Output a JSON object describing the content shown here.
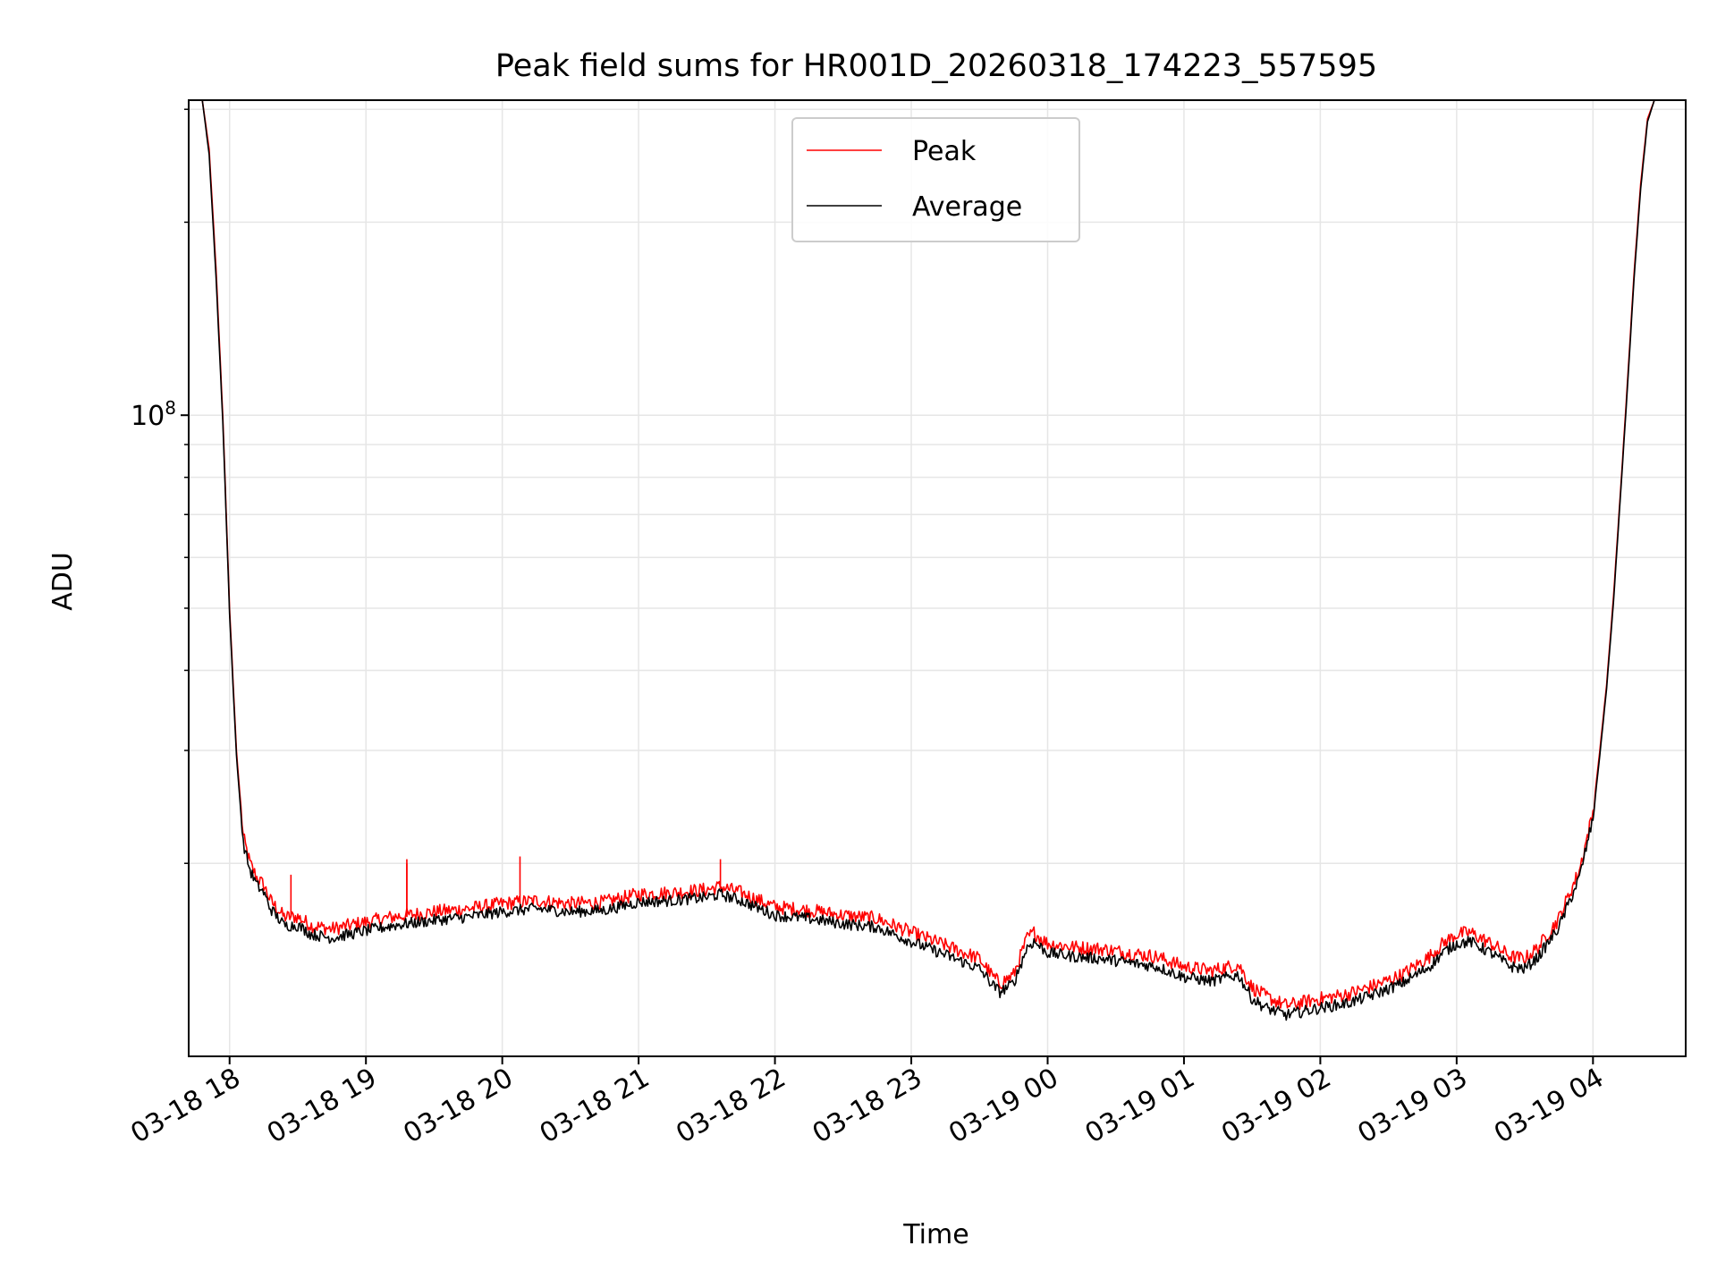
{
  "chart_data": {
    "type": "line",
    "title": "Peak field sums for HR001D_20260318_174223_557595",
    "xlabel": "Time",
    "ylabel": "ADU",
    "yscale": "log",
    "ylim": [
      10000000,
      310000000
    ],
    "xlim_hours": [
      17.7,
      28.68
    ],
    "grid": "major+minor",
    "legend_position": "upper center",
    "x_ticks": [
      {
        "hour": 18,
        "label": "03-18 18"
      },
      {
        "hour": 19,
        "label": "03-18 19"
      },
      {
        "hour": 20,
        "label": "03-18 20"
      },
      {
        "hour": 21,
        "label": "03-18 21"
      },
      {
        "hour": 22,
        "label": "03-18 22"
      },
      {
        "hour": 23,
        "label": "03-18 23"
      },
      {
        "hour": 24,
        "label": "03-19 00"
      },
      {
        "hour": 25,
        "label": "03-19 01"
      },
      {
        "hour": 26,
        "label": "03-19 02"
      },
      {
        "hour": 27,
        "label": "03-19 03"
      },
      {
        "hour": 28,
        "label": "03-19 04"
      }
    ],
    "y_major_ticks": [
      {
        "value": 100000000,
        "base": "10",
        "exp": "8"
      }
    ],
    "y_minor_values": [
      20000000,
      30000000,
      40000000,
      50000000,
      60000000,
      70000000,
      80000000,
      90000000,
      200000000,
      300000000
    ],
    "series": [
      {
        "name": "Peak",
        "color": "#ff0000",
        "x": [
          17.7,
          17.8,
          17.85,
          17.9,
          17.95,
          18.0,
          18.05,
          18.1,
          18.15,
          18.2,
          18.25,
          18.3,
          18.35,
          18.4,
          18.5,
          18.6,
          18.75,
          19.0,
          19.2,
          19.5,
          19.75,
          20.0,
          20.25,
          20.5,
          20.75,
          21.0,
          21.25,
          21.5,
          21.6,
          21.75,
          22.0,
          22.25,
          22.5,
          22.75,
          23.0,
          23.25,
          23.5,
          23.6,
          23.65,
          23.75,
          23.85,
          23.9,
          24.0,
          24.2,
          24.4,
          24.6,
          24.8,
          25.0,
          25.2,
          25.4,
          25.5,
          25.6,
          25.75,
          26.0,
          26.2,
          26.4,
          26.6,
          26.8,
          26.9,
          27.0,
          27.1,
          27.25,
          27.4,
          27.5,
          27.6,
          27.75,
          27.9,
          28.0,
          28.05,
          28.1,
          28.15,
          28.2,
          28.25,
          28.3,
          28.35,
          28.4,
          28.45,
          28.5,
          28.55,
          28.6,
          28.68
        ],
        "values": [
          310000000,
          310000000,
          260000000,
          170000000,
          100000000,
          50000000,
          30000000,
          22000000,
          20000000,
          19000000,
          18500000,
          17500000,
          17000000,
          16500000,
          16500000,
          16000000,
          15800000,
          16200000,
          16500000,
          16800000,
          17000000,
          17300000,
          17500000,
          17300000,
          17400000,
          17900000,
          18000000,
          18200000,
          18400000,
          18000000,
          17100000,
          16900000,
          16600000,
          16400000,
          15600000,
          14900000,
          14200000,
          13300000,
          13000000,
          13400000,
          15300000,
          15600000,
          15000000,
          14800000,
          14700000,
          14500000,
          14300000,
          13800000,
          13600000,
          13900000,
          12800000,
          12400000,
          12000000,
          12300000,
          12500000,
          12900000,
          13400000,
          14300000,
          15000000,
          15500000,
          15600000,
          15000000,
          14300000,
          14200000,
          14800000,
          16400000,
          19500000,
          24000000,
          30000000,
          38000000,
          52000000,
          75000000,
          110000000,
          165000000,
          230000000,
          290000000,
          310000000,
          310000000,
          310000000,
          310000000,
          310000000
        ]
      },
      {
        "name": "Average",
        "color": "#000000",
        "x": [
          17.7,
          17.8,
          17.85,
          17.9,
          17.95,
          18.0,
          18.05,
          18.1,
          18.15,
          18.2,
          18.25,
          18.3,
          18.35,
          18.4,
          18.5,
          18.6,
          18.75,
          19.0,
          19.2,
          19.5,
          19.75,
          20.0,
          20.25,
          20.5,
          20.75,
          21.0,
          21.25,
          21.5,
          21.6,
          21.75,
          22.0,
          22.25,
          22.5,
          22.75,
          23.0,
          23.25,
          23.5,
          23.6,
          23.65,
          23.75,
          23.85,
          23.9,
          24.0,
          24.2,
          24.4,
          24.6,
          24.8,
          25.0,
          25.2,
          25.4,
          25.5,
          25.6,
          25.75,
          26.0,
          26.2,
          26.4,
          26.6,
          26.8,
          26.9,
          27.0,
          27.1,
          27.25,
          27.4,
          27.5,
          27.6,
          27.75,
          27.9,
          28.0,
          28.05,
          28.1,
          28.15,
          28.2,
          28.25,
          28.3,
          28.35,
          28.4,
          28.45,
          28.5,
          28.55,
          28.6,
          28.68
        ],
        "values": [
          310000000,
          310000000,
          255000000,
          165000000,
          98000000,
          49000000,
          29500000,
          21500000,
          19500000,
          18500000,
          18000000,
          17000000,
          16500000,
          16000000,
          16000000,
          15500000,
          15300000,
          15700000,
          16000000,
          16300000,
          16500000,
          16800000,
          17000000,
          16800000,
          16900000,
          17400000,
          17500000,
          17700000,
          17900000,
          17500000,
          16600000,
          16400000,
          16100000,
          15900000,
          15100000,
          14400000,
          13700000,
          12900000,
          12600000,
          13000000,
          14800000,
          15100000,
          14500000,
          14300000,
          14200000,
          14000000,
          13800000,
          13300000,
          13100000,
          13400000,
          12300000,
          11900000,
          11600000,
          11900000,
          12100000,
          12500000,
          13000000,
          13800000,
          14500000,
          15000000,
          15100000,
          14500000,
          13800000,
          13700000,
          14300000,
          15900000,
          19000000,
          23500000,
          29500000,
          37500000,
          51000000,
          74000000,
          108000000,
          162000000,
          226000000,
          287000000,
          310000000,
          310000000,
          310000000,
          310000000,
          310000000
        ]
      }
    ]
  }
}
